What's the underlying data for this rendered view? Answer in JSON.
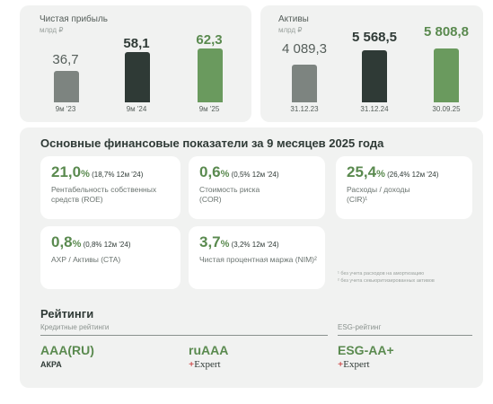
{
  "net_profit": {
    "title": "Чистая прибыль",
    "unit": "млрд ₽",
    "bars": [
      {
        "label": "9м '23",
        "value": "36,7",
        "num": 36.7,
        "color": "#7d8480"
      },
      {
        "label": "9м '24",
        "value": "58,1",
        "num": 58.1,
        "color": "#2f3a36"
      },
      {
        "label": "9м '25",
        "value": "62,3",
        "num": 62.3,
        "color": "#6a9a5e"
      }
    ]
  },
  "assets": {
    "title": "Активы",
    "unit": "млрд ₽",
    "bars": [
      {
        "label": "31.12.23",
        "value": "4 089,3",
        "num": 4089.3,
        "color": "#7d8480"
      },
      {
        "label": "31.12.24",
        "value": "5 568,5",
        "num": 5568.5,
        "color": "#2f3a36"
      },
      {
        "label": "30.09.25",
        "value": "5 808,8",
        "num": 5808.8,
        "color": "#6a9a5e"
      }
    ]
  },
  "indicators": {
    "title": "Основные финансовые показатели за 9 месяцев 2025 года",
    "cards": [
      {
        "value": "21,0",
        "percent": "%",
        "compare": " (18,7% 12м '24)",
        "desc": "Рентабельность собственных средств (ROE)"
      },
      {
        "value": "0,6",
        "percent": "%",
        "compare": " (0,5% 12м '24)",
        "desc": "Стоимость риска (COR)"
      },
      {
        "value": "25,4",
        "percent": "%",
        "compare": " (26,4% 12м '24)",
        "desc": "Расходы / доходы (CIR)¹"
      },
      {
        "value": "0,8",
        "percent": "%",
        "compare": " (0,8% 12м '24)",
        "desc": "АХР / Активы (CTA)"
      },
      {
        "value": "3,7",
        "percent": "%",
        "compare": " (3,2% 12м '24)",
        "desc": "Чистая процентная маржа (NIM)²"
      }
    ],
    "footnotes": [
      "¹ без учета расходов на амортизацию",
      "² без учета секьюритизированных активов"
    ]
  },
  "ratings": {
    "title": "Рейтинги",
    "credit_label": "Кредитные рейтинги",
    "esg_label": "ESG-рейтинг",
    "items": [
      {
        "value": "AAA(RU)",
        "agency": "АКРА"
      },
      {
        "value": "ruAAA",
        "agency_mark": "+",
        "agency": "Expert"
      },
      {
        "value": "ESG-AA+",
        "agency_mark": "+",
        "agency": "Expert"
      }
    ]
  }
}
